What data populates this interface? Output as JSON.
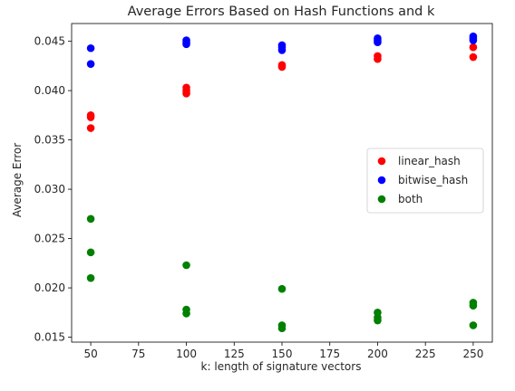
{
  "chart_data": {
    "type": "scatter",
    "title": "Average Errors Based on Hash Functions and k",
    "xlabel": "k: length of signature vectors",
    "ylabel": "Average Error",
    "xlim": [
      40,
      260
    ],
    "ylim": [
      0.0145,
      0.0468
    ],
    "xticks": [
      50,
      75,
      100,
      125,
      150,
      175,
      200,
      225,
      250
    ],
    "yticks": [
      0.015,
      0.02,
      0.025,
      0.03,
      0.035,
      0.04,
      0.045
    ],
    "ytick_labels": [
      "0.015",
      "0.020",
      "0.025",
      "0.030",
      "0.035",
      "0.040",
      "0.045"
    ],
    "grid": false,
    "legend_position": "center-right",
    "series": [
      {
        "name": "linear_hash",
        "color": "#ff0000",
        "points": [
          {
            "x": 50,
            "y": 0.0375
          },
          {
            "x": 50,
            "y": 0.0373
          },
          {
            "x": 50,
            "y": 0.0362
          },
          {
            "x": 100,
            "y": 0.0403
          },
          {
            "x": 100,
            "y": 0.04
          },
          {
            "x": 100,
            "y": 0.0397
          },
          {
            "x": 150,
            "y": 0.0426
          },
          {
            "x": 150,
            "y": 0.0424
          },
          {
            "x": 200,
            "y": 0.0435
          },
          {
            "x": 200,
            "y": 0.0432
          },
          {
            "x": 250,
            "y": 0.0444
          },
          {
            "x": 250,
            "y": 0.0434
          }
        ]
      },
      {
        "name": "bitwise_hash",
        "color": "#0000ff",
        "points": [
          {
            "x": 50,
            "y": 0.0443
          },
          {
            "x": 50,
            "y": 0.0427
          },
          {
            "x": 100,
            "y": 0.0451
          },
          {
            "x": 100,
            "y": 0.0449
          },
          {
            "x": 100,
            "y": 0.0447
          },
          {
            "x": 150,
            "y": 0.0446
          },
          {
            "x": 150,
            "y": 0.0444
          },
          {
            "x": 150,
            "y": 0.0441
          },
          {
            "x": 200,
            "y": 0.0453
          },
          {
            "x": 200,
            "y": 0.0451
          },
          {
            "x": 200,
            "y": 0.0449
          },
          {
            "x": 250,
            "y": 0.0455
          },
          {
            "x": 250,
            "y": 0.0453
          },
          {
            "x": 250,
            "y": 0.0451
          }
        ]
      },
      {
        "name": "both",
        "color": "#008000",
        "points": [
          {
            "x": 50,
            "y": 0.027
          },
          {
            "x": 50,
            "y": 0.0236
          },
          {
            "x": 50,
            "y": 0.021
          },
          {
            "x": 100,
            "y": 0.0223
          },
          {
            "x": 100,
            "y": 0.0178
          },
          {
            "x": 100,
            "y": 0.0174
          },
          {
            "x": 150,
            "y": 0.0199
          },
          {
            "x": 150,
            "y": 0.0162
          },
          {
            "x": 150,
            "y": 0.0159
          },
          {
            "x": 200,
            "y": 0.0175
          },
          {
            "x": 200,
            "y": 0.017
          },
          {
            "x": 200,
            "y": 0.0167
          },
          {
            "x": 250,
            "y": 0.0185
          },
          {
            "x": 250,
            "y": 0.0182
          },
          {
            "x": 250,
            "y": 0.0162
          }
        ]
      }
    ]
  }
}
